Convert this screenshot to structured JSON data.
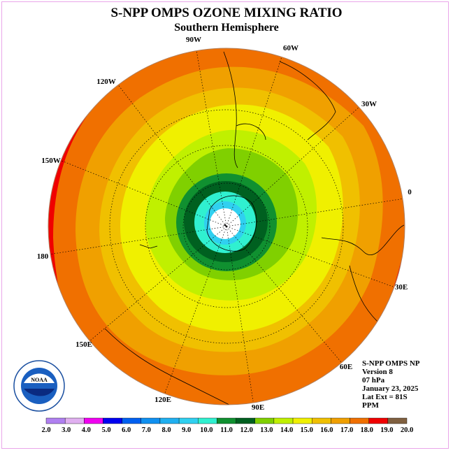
{
  "title": "S-NPP OMPS OZONE MIXING RATIO",
  "subtitle": "Southern Hemisphere",
  "info": {
    "product": "S-NPP OMPS NP",
    "version": "Version 8",
    "pressure": "07 hPa",
    "date": "January 23, 2025",
    "lat_ext": "Lat Ext = 81S",
    "units": "PPM"
  },
  "longitude_labels": [
    "90W",
    "60W",
    "30W",
    "0",
    "30E",
    "60E",
    "90E",
    "120E",
    "150E",
    "180",
    "150W",
    "120W"
  ],
  "colorbar": {
    "ticks": [
      "2.0",
      "3.0",
      "4.0",
      "5.0",
      "6.0",
      "7.0",
      "8.0",
      "9.0",
      "10.0",
      "11.0",
      "12.0",
      "13.0",
      "14.0",
      "15.0",
      "16.0",
      "17.0",
      "18.0",
      "19.0",
      "20.0"
    ],
    "colors": [
      "#b080f0",
      "#e0b0f0",
      "#f000f0",
      "#0000f0",
      "#0060f0",
      "#1090f0",
      "#20b0f0",
      "#30d0f0",
      "#30f0d0",
      "#109030",
      "#006020",
      "#80d000",
      "#c0f000",
      "#f0f000",
      "#f0c000",
      "#f0a000",
      "#f07000",
      "#f00000",
      "#806040"
    ]
  },
  "logo": {
    "name": "NOAA"
  }
}
